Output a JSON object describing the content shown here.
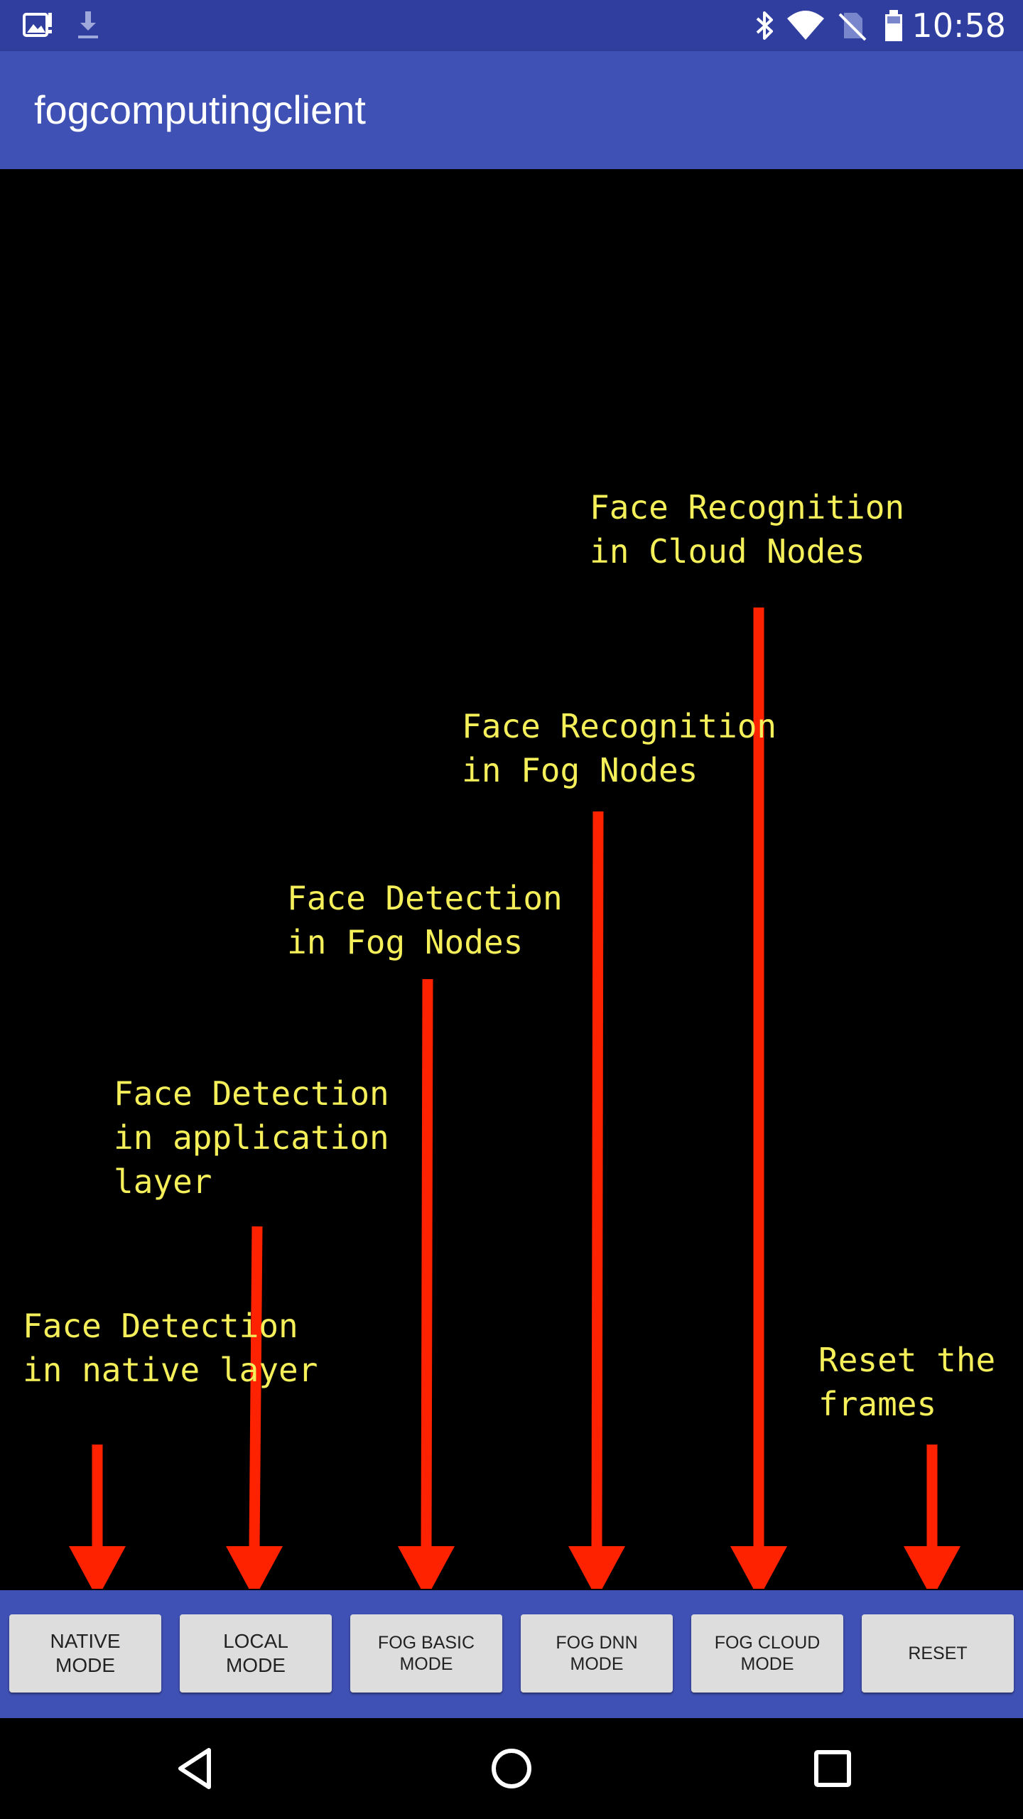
{
  "status_bar": {
    "time": "10:58",
    "left_icons": [
      "image-notification-icon",
      "download-icon"
    ],
    "right_icons": [
      "bluetooth-icon",
      "wifi-icon",
      "no-sim-icon",
      "battery-icon"
    ]
  },
  "app_bar": {
    "title": "fogcomputingclient"
  },
  "annotations": [
    {
      "id": "native",
      "text": "Face Detection\nin native layer"
    },
    {
      "id": "local",
      "text": "Face Detection\nin application\nlayer"
    },
    {
      "id": "fog-basic",
      "text": "Face Detection\nin Fog Nodes"
    },
    {
      "id": "fog-dnn",
      "text": "Face Recognition\nin Fog Nodes"
    },
    {
      "id": "fog-cloud",
      "text": "Face Recognition\nin Cloud Nodes"
    },
    {
      "id": "reset",
      "text": "Reset the\nframes"
    }
  ],
  "buttons": [
    {
      "id": "native-mode",
      "label": "NATIVE\nMODE"
    },
    {
      "id": "local-mode",
      "label": "LOCAL\nMODE"
    },
    {
      "id": "fog-basic-mode",
      "label": "FOG BASIC\nMODE"
    },
    {
      "id": "fog-dnn-mode",
      "label": "FOG DNN\nMODE"
    },
    {
      "id": "fog-cloud-mode",
      "label": "FOG CLOUD\nMODE"
    },
    {
      "id": "reset",
      "label": "RESET"
    }
  ],
  "nav_bar": {
    "icons": [
      "back-icon",
      "home-icon",
      "recents-icon"
    ]
  },
  "colors": {
    "status_bar": "#303f9f",
    "app_bar": "#3f51b5",
    "annotation_text": "#f5f05a",
    "arrow": "#ff2200",
    "button": "#dddddd"
  }
}
